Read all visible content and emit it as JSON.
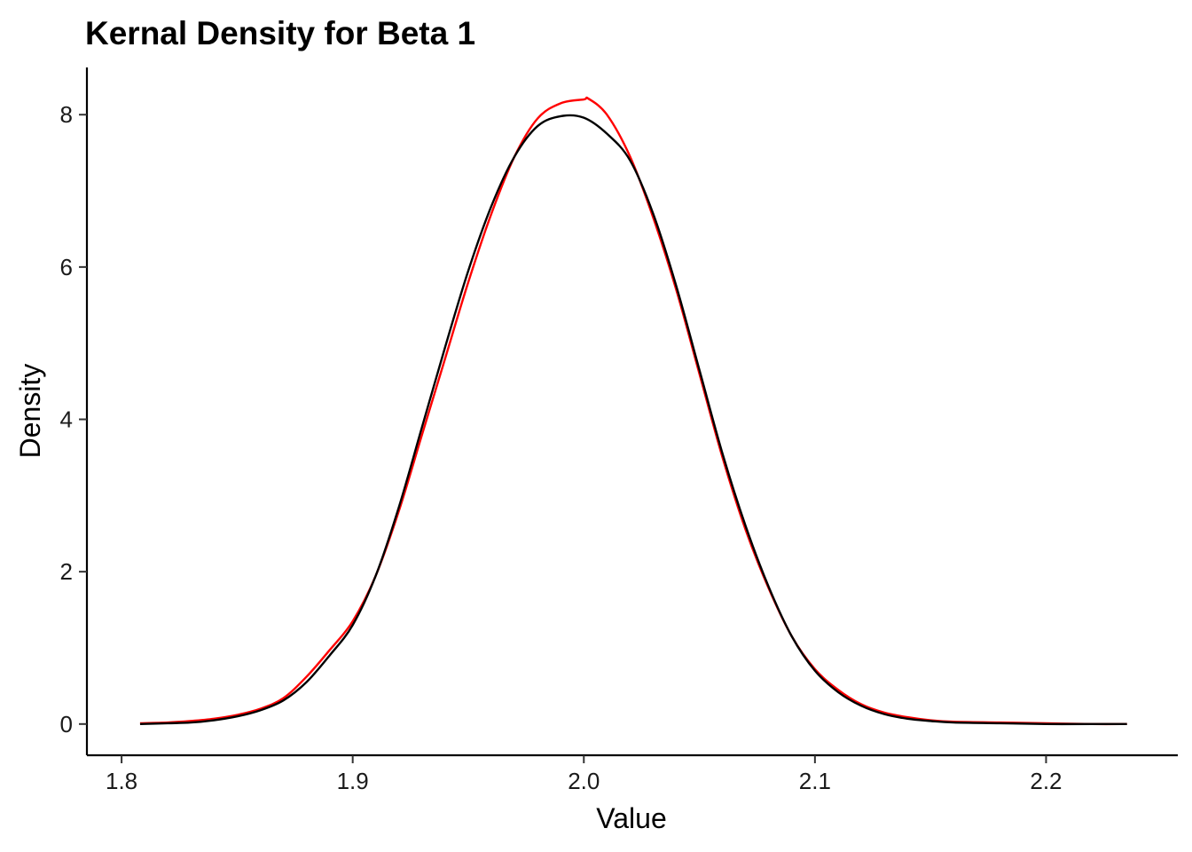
{
  "chart_data": {
    "type": "line",
    "title": "Kernal Density for Beta 1",
    "xlabel": "Value",
    "ylabel": "Density",
    "xlim": [
      1.785,
      2.257
    ],
    "ylim": [
      -0.41,
      8.62
    ],
    "x_ticks": [
      "1.8",
      "1.9",
      "2.0",
      "2.1",
      "2.2"
    ],
    "x_tick_values": [
      1.8,
      1.9,
      2.0,
      2.1,
      2.2
    ],
    "y_ticks": [
      "0",
      "2",
      "4",
      "6",
      "8"
    ],
    "y_tick_values": [
      0,
      2,
      4,
      6,
      8
    ],
    "grid": false,
    "legend": "none",
    "series": [
      {
        "color": "#ff0000",
        "x": [
          1.808,
          1.82,
          1.83,
          1.84,
          1.85,
          1.86,
          1.87,
          1.88,
          1.89,
          1.9,
          1.91,
          1.92,
          1.93,
          1.94,
          1.95,
          1.96,
          1.97,
          1.98,
          1.99,
          2.0,
          2.002,
          2.01,
          2.02,
          2.03,
          2.04,
          2.05,
          2.06,
          2.07,
          2.08,
          2.09,
          2.1,
          2.11,
          2.12,
          2.13,
          2.14,
          2.15,
          2.16,
          2.18,
          2.2,
          2.22,
          2.235
        ],
        "y": [
          0.01,
          0.02,
          0.04,
          0.07,
          0.12,
          0.2,
          0.34,
          0.62,
          0.97,
          1.35,
          1.95,
          2.8,
          3.8,
          4.8,
          5.8,
          6.7,
          7.45,
          7.95,
          8.15,
          8.2,
          8.21,
          8.0,
          7.45,
          6.65,
          5.7,
          4.6,
          3.5,
          2.55,
          1.78,
          1.15,
          0.72,
          0.45,
          0.26,
          0.15,
          0.09,
          0.05,
          0.03,
          0.02,
          0.01,
          0.0,
          0.0
        ]
      },
      {
        "color": "#000000",
        "x": [
          1.808,
          1.82,
          1.83,
          1.84,
          1.85,
          1.86,
          1.87,
          1.88,
          1.89,
          1.9,
          1.91,
          1.92,
          1.93,
          1.94,
          1.95,
          1.96,
          1.97,
          1.98,
          1.99,
          2.0,
          2.01,
          2.02,
          2.03,
          2.04,
          2.05,
          2.06,
          2.07,
          2.08,
          2.09,
          2.1,
          2.11,
          2.12,
          2.13,
          2.14,
          2.15,
          2.16,
          2.18,
          2.2,
          2.22,
          2.235
        ],
        "y": [
          0.0,
          0.01,
          0.02,
          0.05,
          0.1,
          0.18,
          0.31,
          0.55,
          0.9,
          1.3,
          1.95,
          2.85,
          3.9,
          4.95,
          5.95,
          6.8,
          7.45,
          7.85,
          7.98,
          7.96,
          7.75,
          7.4,
          6.7,
          5.75,
          4.65,
          3.55,
          2.6,
          1.8,
          1.15,
          0.7,
          0.42,
          0.24,
          0.13,
          0.07,
          0.04,
          0.02,
          0.01,
          0.0,
          0.0,
          0.0
        ]
      }
    ]
  }
}
